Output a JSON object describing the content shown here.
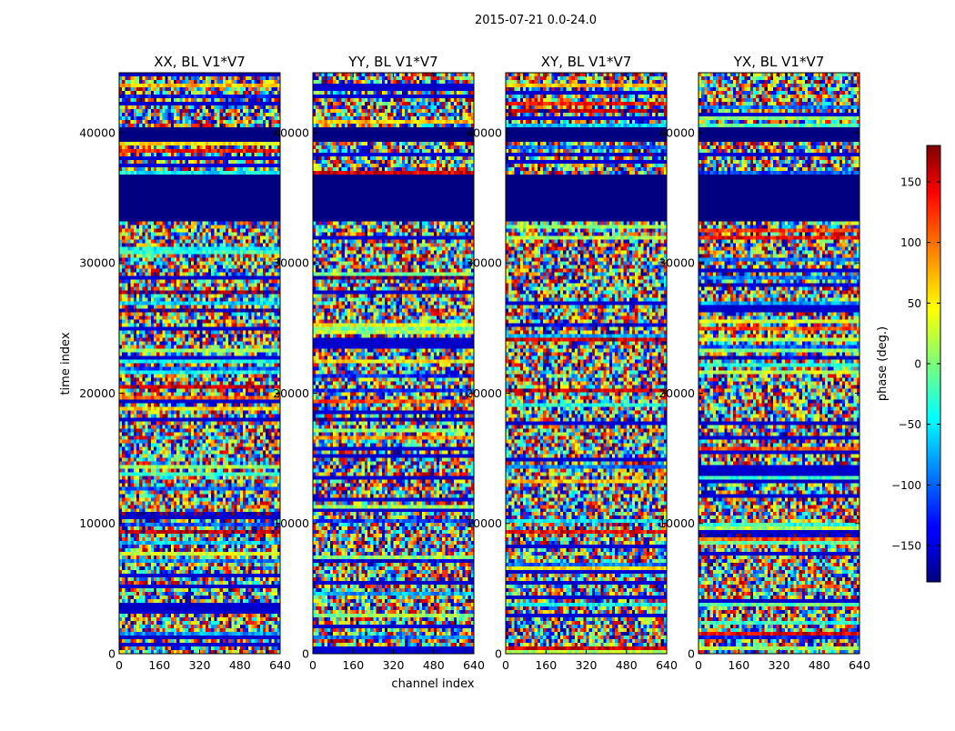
{
  "chart_data": {
    "type": "heatmap",
    "suptitle": "2015-07-21 0.0-24.0",
    "xlabel": "channel index",
    "ylabel": "time index",
    "xlim": [
      0,
      640
    ],
    "ylim": [
      0,
      44600
    ],
    "x_ticks": [
      0,
      160,
      320,
      480,
      640
    ],
    "y_ticks": [
      0,
      10000,
      20000,
      30000,
      40000
    ],
    "panels": [
      {
        "title": "XX, BL V1*V7",
        "pol": "XX"
      },
      {
        "title": "YY, BL V1*V7",
        "pol": "YY"
      },
      {
        "title": "XY, BL V1*V7",
        "pol": "XY"
      },
      {
        "title": "YX, BL V1*V7",
        "pol": "YX"
      }
    ],
    "colorbar": {
      "label": "phase (deg.)",
      "range": [
        -180,
        180
      ],
      "ticks": [
        -150,
        -100,
        -50,
        0,
        50,
        100,
        150
      ],
      "colormap": "jet"
    },
    "flagged_time_ranges": [
      [
        33500,
        36600
      ],
      [
        39700,
        40300
      ]
    ]
  }
}
